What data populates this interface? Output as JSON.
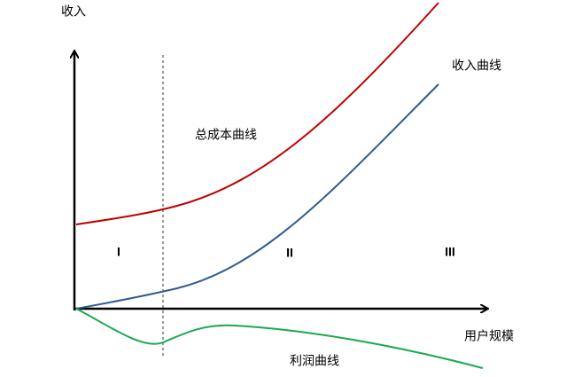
{
  "axes": {
    "y_label": "收入",
    "x_label": "用户规模"
  },
  "curves": {
    "cost": "总成本曲线",
    "revenue": "收入曲线",
    "profit": "利润曲线"
  },
  "zones": [
    "I",
    "II",
    "III"
  ]
}
